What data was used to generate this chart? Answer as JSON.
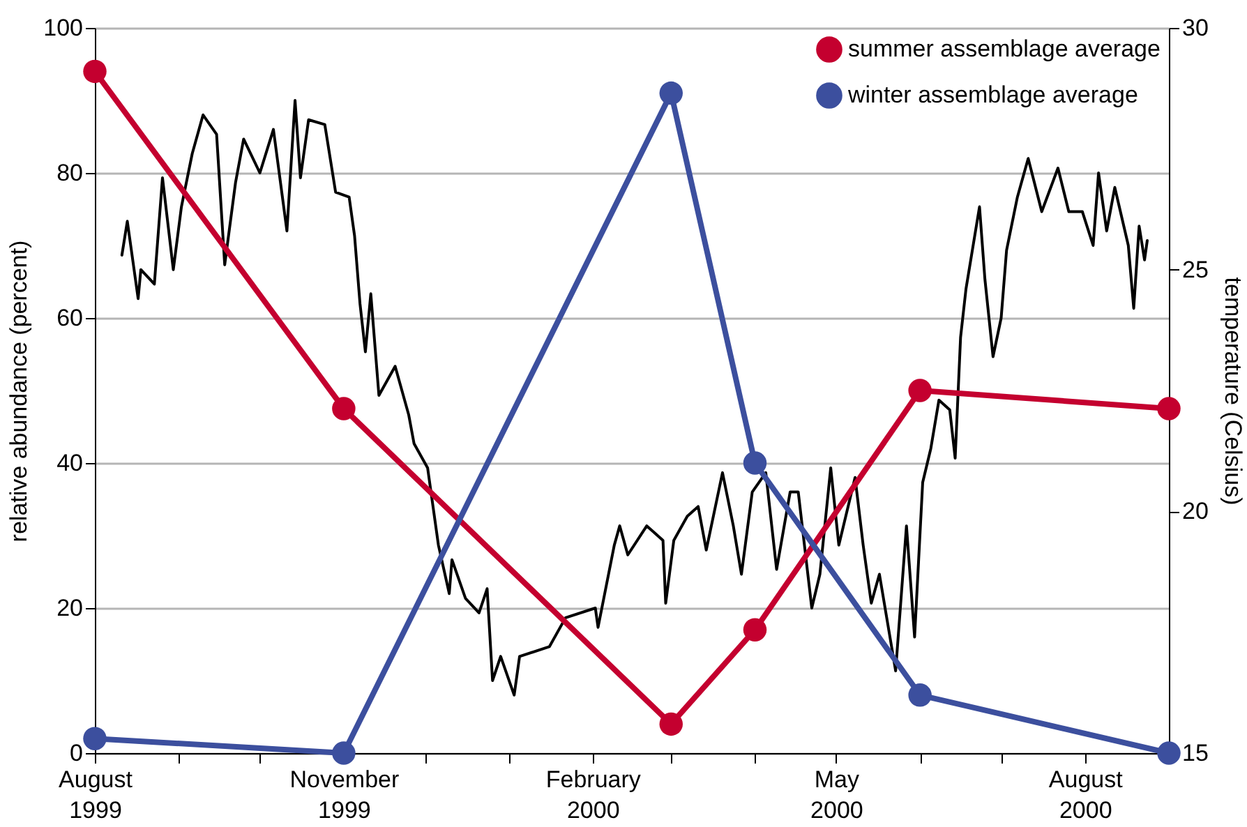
{
  "chart_data": {
    "type": "line",
    "ylabel": "relative abundance (percent)",
    "y2label": "temperature (Celsius)",
    "xlim": [
      "1999-08-01",
      "2000-09-01"
    ],
    "ylim": [
      0,
      100
    ],
    "yticks": [
      0,
      20,
      40,
      60,
      80,
      100
    ],
    "y2lim": [
      15,
      30
    ],
    "y2ticks": [
      15,
      20,
      25,
      30
    ],
    "xticks": [
      {
        "value": "1999-08-01",
        "label": "August\n1999"
      },
      {
        "value": "1999-09-01",
        "label": null
      },
      {
        "value": "1999-10-01",
        "label": null
      },
      {
        "value": "1999-11-01",
        "label": "November\n1999"
      },
      {
        "value": "1999-12-01",
        "label": null
      },
      {
        "value": "2000-01-01",
        "label": null
      },
      {
        "value": "2000-02-01",
        "label": "February\n2000"
      },
      {
        "value": "2000-03-01",
        "label": null
      },
      {
        "value": "2000-04-01",
        "label": null
      },
      {
        "value": "2000-05-01",
        "label": "May\n2000"
      },
      {
        "value": "2000-06-01",
        "label": null
      },
      {
        "value": "2000-07-01",
        "label": null
      },
      {
        "value": "2000-08-01",
        "label": "August\n2000"
      },
      {
        "value": "2000-09-01",
        "label": null
      }
    ],
    "grid": "y",
    "legend": "top right",
    "line_style": "solid",
    "series": [
      {
        "axis": "y2",
        "color": "#000000",
        "marker": "none",
        "x": [
          "1999-08-11",
          "1999-08-13",
          "1999-08-17",
          "1999-08-18",
          "1999-08-23",
          "1999-08-26",
          "1999-08-30",
          "1999-09-02",
          "1999-09-06",
          "1999-09-10",
          "1999-09-15",
          "1999-09-18",
          "1999-09-22",
          "1999-09-25",
          "1999-10-01",
          "1999-10-06",
          "1999-10-11",
          "1999-10-14",
          "1999-10-16",
          "1999-10-19",
          "1999-10-25",
          "1999-10-29",
          "1999-11-03",
          "1999-11-05",
          "1999-11-07",
          "1999-11-09",
          "1999-11-11",
          "1999-11-14",
          "1999-11-20",
          "1999-11-25",
          "1999-11-27",
          "1999-12-02",
          "1999-12-06",
          "1999-12-10",
          "1999-12-11",
          "1999-12-16",
          "1999-12-21",
          "1999-12-24",
          "1999-12-26",
          "1999-12-29",
          "2000-01-03",
          "2000-01-05",
          "2000-01-16",
          "2000-01-22",
          "2000-02-02",
          "2000-02-03",
          "2000-02-09",
          "2000-02-11",
          "2000-02-14",
          "2000-02-21",
          "2000-02-27",
          "2000-02-28",
          "2000-03-02",
          "2000-03-07",
          "2000-03-11",
          "2000-03-14",
          "2000-03-20",
          "2000-03-24",
          "2000-03-27",
          "2000-03-31",
          "2000-04-05",
          "2000-04-09",
          "2000-04-14",
          "2000-04-17",
          "2000-04-22",
          "2000-04-25",
          "2000-04-29",
          "2000-05-02",
          "2000-05-08",
          "2000-05-11",
          "2000-05-14",
          "2000-05-17",
          "2000-05-23",
          "2000-05-27",
          "2000-05-30",
          "2000-06-02",
          "2000-06-05",
          "2000-06-08",
          "2000-06-12",
          "2000-06-14",
          "2000-06-16",
          "2000-06-18",
          "2000-06-23",
          "2000-06-25",
          "2000-06-28",
          "2000-07-01",
          "2000-07-03",
          "2000-07-07",
          "2000-07-11",
          "2000-07-16",
          "2000-07-22",
          "2000-07-26",
          "2000-07-31",
          "2000-08-04",
          "2000-08-06",
          "2000-08-09",
          "2000-08-12",
          "2000-08-17",
          "2000-08-19",
          "2000-08-21",
          "2000-08-23",
          "2000-08-24"
        ],
        "values": [
          25.3,
          26.0,
          24.4,
          25.0,
          24.7,
          26.9,
          25.0,
          26.3,
          27.4,
          28.2,
          27.8,
          25.1,
          26.8,
          27.7,
          27.0,
          27.9,
          25.8,
          28.5,
          26.9,
          28.1,
          28.0,
          26.6,
          26.5,
          25.7,
          24.3,
          23.3,
          24.5,
          22.4,
          23.0,
          22.0,
          21.4,
          20.9,
          19.3,
          18.3,
          19.0,
          18.2,
          17.9,
          18.4,
          16.5,
          17.0,
          16.2,
          17.0,
          17.2,
          17.8,
          18.0,
          17.6,
          19.3,
          19.7,
          19.1,
          19.7,
          19.4,
          18.1,
          19.4,
          19.9,
          20.1,
          19.2,
          20.8,
          19.7,
          18.7,
          20.4,
          20.8,
          18.8,
          20.4,
          20.4,
          18.0,
          18.7,
          20.9,
          19.3,
          20.7,
          19.3,
          18.1,
          18.7,
          16.7,
          19.7,
          17.4,
          20.6,
          21.3,
          22.3,
          22.1,
          21.1,
          23.6,
          24.6,
          26.3,
          24.8,
          23.2,
          24.0,
          25.4,
          26.5,
          27.3,
          26.2,
          27.1,
          26.2,
          26.2,
          25.5,
          27.0,
          25.8,
          26.7,
          25.5,
          24.2,
          25.9,
          25.2,
          25.6
        ]
      },
      {
        "name": "summer assemblage average",
        "color": "#c4002f",
        "marker": "circle",
        "x": [
          "1999-08-01",
          "1999-11-01",
          "2000-03-01",
          "2000-04-01",
          "2000-06-01",
          "2000-09-01"
        ],
        "values": [
          94,
          47.5,
          4,
          17,
          50,
          47.5
        ]
      },
      {
        "name": "winter assemblage average",
        "color": "#3c4f9e",
        "marker": "circle",
        "x": [
          "1999-08-01",
          "1999-11-01",
          "2000-03-01",
          "2000-04-01",
          "2000-06-01",
          "2000-09-01"
        ],
        "values": [
          2,
          0,
          91,
          40,
          8,
          0
        ]
      }
    ]
  }
}
